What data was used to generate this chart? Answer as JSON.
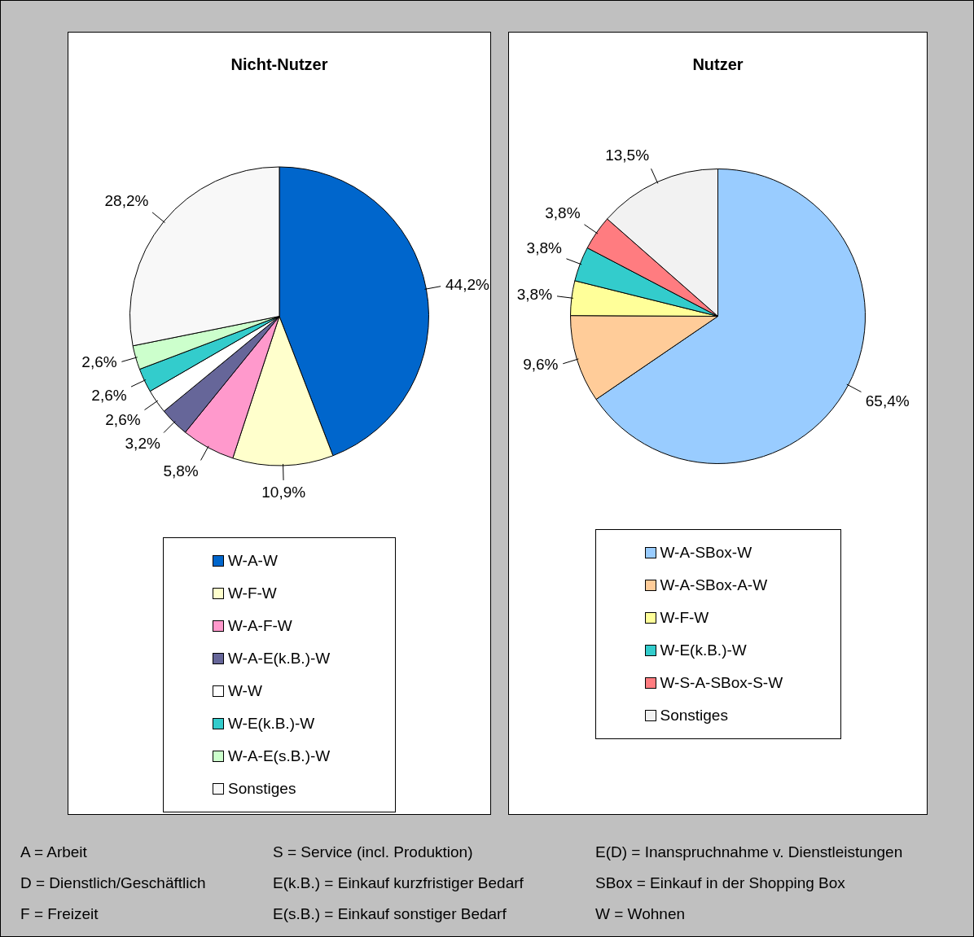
{
  "chart_data": [
    {
      "type": "pie",
      "title": "Nicht-Nutzer",
      "categories": [
        "W-A-W",
        "W-F-W",
        "W-A-F-W",
        "W-A-E(k.B.)-W",
        "W-W",
        "W-E(k.B.)-W",
        "W-A-E(s.B.)-W",
        "Sonstiges"
      ],
      "values": [
        44.2,
        10.9,
        5.8,
        3.2,
        2.6,
        2.6,
        2.6,
        28.2
      ],
      "value_labels": [
        "44,2%",
        "10,9%",
        "5,8%",
        "3,2%",
        "2,6%",
        "2,6%",
        "2,6%",
        "28,2%"
      ],
      "colors": [
        "#0066cc",
        "#ffffcc",
        "#ff99cc",
        "#666699",
        "#ffffff",
        "#33cccc",
        "#ccffcc",
        "#f8f8f8"
      ],
      "legend": "bottom"
    },
    {
      "type": "pie",
      "title": "Nutzer",
      "categories": [
        "W-A-SBox-W",
        "W-A-SBox-A-W",
        "W-F-W",
        "W-E(k.B.)-W",
        "W-S-A-SBox-S-W",
        "Sonstiges"
      ],
      "values": [
        65.4,
        9.6,
        3.8,
        3.8,
        3.8,
        13.5
      ],
      "value_labels": [
        "65,4%",
        "9,6%",
        "3,8%",
        "3,8%",
        "3,8%",
        "13,5%"
      ],
      "colors": [
        "#99ccff",
        "#ffcc99",
        "#ffff99",
        "#33cccc",
        "#ff7c80",
        "#f2f2f2"
      ],
      "legend": "bottom"
    },
    {
      "type": "other",
      "annotations": [
        "A = Arbeit",
        "S = Service (incl. Produktion)",
        "E(D) = Inanspruchnahme v. Dienstleistungen",
        "D = Dienstlich/Geschäftlich",
        "E(k.B.) = Einkauf kurzfristiger Bedarf",
        "SBox = Einkauf in der Shopping Box",
        "F = Freizeit",
        "E(s.B.) = Einkauf sonstiger Bedarf",
        "W = Wohnen"
      ]
    }
  ]
}
